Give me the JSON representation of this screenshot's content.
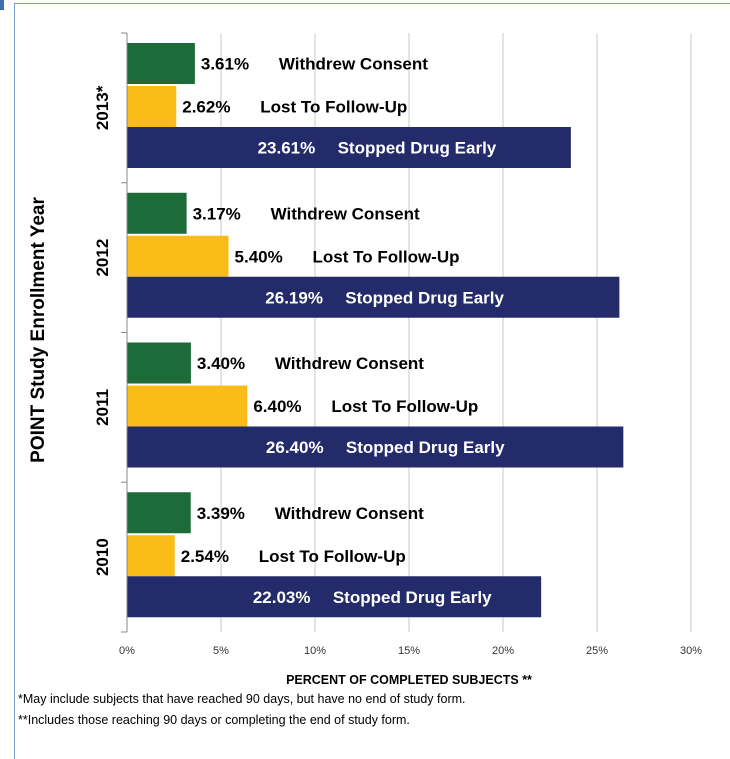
{
  "colors": {
    "withdrew": "#1e6b3a",
    "lost": "#f9bc18",
    "stopped": "#232b6b",
    "grid": "#c8c8c8",
    "text_dark": "#000000",
    "text_light": "#ffffff"
  },
  "chart_data": {
    "type": "bar",
    "orientation": "horizontal",
    "ylabel": "POINT Study Enrollment Year",
    "xlabel": "PERCENT OF COMPLETED SUBJECTS **",
    "xlim": [
      0,
      30
    ],
    "x_ticks": [
      "0%",
      "5%",
      "10%",
      "15%",
      "20%",
      "25%",
      "30%"
    ],
    "grid": true,
    "categories": [
      "2013*",
      "2012",
      "2011",
      "2010"
    ],
    "series": [
      {
        "name": "Withdrew Consent",
        "values": [
          3.61,
          3.17,
          3.4,
          3.39
        ],
        "labels": [
          "3.61%",
          "3.17%",
          "3.40%",
          "3.39%"
        ]
      },
      {
        "name": "Lost To Follow-Up",
        "values": [
          2.62,
          5.4,
          6.4,
          2.54
        ],
        "labels": [
          "2.62%",
          "5.40%",
          "6.40%",
          "2.54%"
        ]
      },
      {
        "name": "Stopped Drug Early",
        "values": [
          23.61,
          26.19,
          26.4,
          22.03
        ],
        "labels": [
          "23.61%",
          "26.19%",
          "26.40%",
          "22.03%"
        ]
      }
    ]
  },
  "footnotes": [
    "*May include subjects that have reached 90 days, but have no end of study form.",
    "**Includes those reaching 90 days or completing the end of study form."
  ]
}
